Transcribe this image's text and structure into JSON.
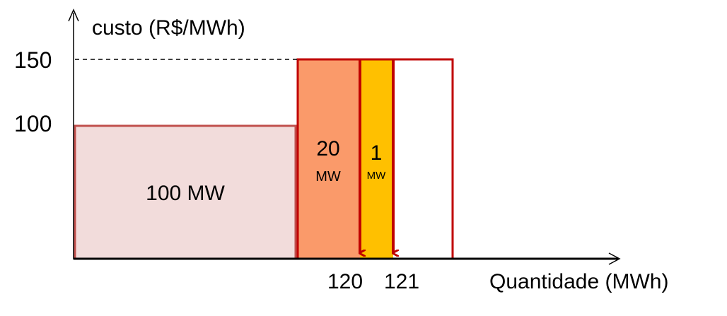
{
  "axes": {
    "y_label": "custo (R$/MWh)",
    "x_label": "Quantidade (MWh)",
    "y_ticks": [
      "150",
      "100"
    ],
    "x_ticks": [
      "120",
      "121"
    ]
  },
  "blocks": {
    "base": {
      "value": "100 MW",
      "cost": 100,
      "quantity": 100
    },
    "step": {
      "value": "20",
      "unit": "MW",
      "cost": 150,
      "quantity": 20
    },
    "marginal": {
      "value": "1",
      "unit": "MW",
      "cost": 150,
      "quantity": 1
    }
  },
  "colors": {
    "base_fill": "#f2dcdb",
    "base_stroke": "#c0504d",
    "step_fill": "#fa9a6a",
    "marginal_fill": "#ffc000",
    "outline": "#c00000",
    "axis": "#000000"
  }
}
